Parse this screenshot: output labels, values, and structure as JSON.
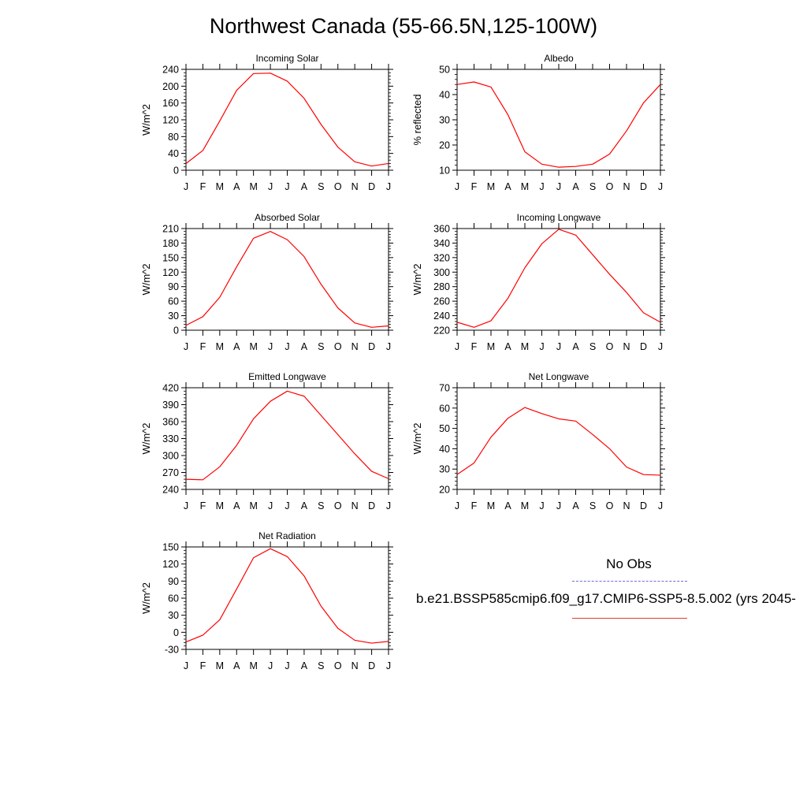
{
  "title": "Northwest Canada (55-66.5N,125-100W)",
  "colors": {
    "series": "#ff0000",
    "obs": "#6b6bd6",
    "axis": "#000000"
  },
  "legend": {
    "obs_label": "No Obs",
    "model_label": "b.e21.BSSP585cmip6.f09_g17.CMIP6-SSP5-8.5.002 (yrs 2045-"
  },
  "chart_data": [
    {
      "type": "line",
      "title": "Incoming Solar",
      "ylabel": "W/m^2",
      "categories": [
        "J",
        "F",
        "M",
        "A",
        "M",
        "J",
        "J",
        "A",
        "S",
        "O",
        "N",
        "D",
        "J"
      ],
      "ylim": [
        0,
        240
      ],
      "yticks": [
        0,
        40,
        80,
        120,
        160,
        200,
        240
      ],
      "series": [
        {
          "values": [
            16,
            47,
            117,
            190,
            230,
            231,
            212,
            171,
            109,
            55,
            20,
            10,
            16
          ]
        }
      ]
    },
    {
      "type": "line",
      "title": "Albedo",
      "ylabel": "% reflected",
      "categories": [
        "J",
        "F",
        "M",
        "A",
        "M",
        "J",
        "J",
        "A",
        "S",
        "O",
        "N",
        "D",
        "J"
      ],
      "ylim": [
        10,
        50
      ],
      "yticks": [
        10,
        20,
        30,
        40,
        50
      ],
      "series": [
        {
          "values": [
            44,
            45,
            43,
            32,
            17.3,
            12.4,
            11.2,
            11.5,
            12.4,
            16.4,
            25.6,
            36.7,
            44
          ]
        }
      ]
    },
    {
      "type": "line",
      "title": "Absorbed Solar",
      "ylabel": "W/m^2",
      "categories": [
        "J",
        "F",
        "M",
        "A",
        "M",
        "J",
        "J",
        "A",
        "S",
        "O",
        "N",
        "D",
        "J"
      ],
      "ylim": [
        0,
        210
      ],
      "yticks": [
        0,
        30,
        60,
        90,
        120,
        150,
        180,
        210
      ],
      "series": [
        {
          "values": [
            10,
            28,
            68,
            131,
            190,
            204,
            187,
            152,
            95,
            46,
            15,
            6,
            9
          ]
        }
      ]
    },
    {
      "type": "line",
      "title": "Incoming Longwave",
      "ylabel": "W/m^2",
      "categories": [
        "J",
        "F",
        "M",
        "A",
        "M",
        "J",
        "J",
        "A",
        "S",
        "O",
        "N",
        "D",
        "J"
      ],
      "ylim": [
        220,
        360
      ],
      "yticks": [
        220,
        240,
        260,
        280,
        300,
        320,
        340,
        360
      ],
      "series": [
        {
          "values": [
            231,
            224,
            233,
            264,
            306,
            339,
            359,
            351,
            324,
            297,
            272,
            244,
            231
          ]
        }
      ]
    },
    {
      "type": "line",
      "title": "Emitted Longwave",
      "ylabel": "W/m^2",
      "categories": [
        "J",
        "F",
        "M",
        "A",
        "M",
        "J",
        "J",
        "A",
        "S",
        "O",
        "N",
        "D",
        "J"
      ],
      "ylim": [
        240,
        420
      ],
      "yticks": [
        240,
        270,
        300,
        330,
        360,
        390,
        420
      ],
      "series": [
        {
          "values": [
            258,
            257,
            280,
            318,
            365,
            396,
            414,
            405,
            371,
            337,
            303,
            272,
            259
          ]
        }
      ]
    },
    {
      "type": "line",
      "title": "Net Longwave",
      "ylabel": "W/m^2",
      "categories": [
        "J",
        "F",
        "M",
        "A",
        "M",
        "J",
        "J",
        "A",
        "S",
        "O",
        "N",
        "D",
        "J"
      ],
      "ylim": [
        20,
        70
      ],
      "yticks": [
        20,
        30,
        40,
        50,
        60,
        70
      ],
      "series": [
        {
          "values": [
            27.3,
            33,
            45.7,
            55,
            60.3,
            57.3,
            54.7,
            53.6,
            47,
            40,
            31,
            27.3,
            27
          ]
        }
      ]
    },
    {
      "type": "line",
      "title": "Net Radiation",
      "ylabel": "W/m^2",
      "categories": [
        "J",
        "F",
        "M",
        "A",
        "M",
        "J",
        "J",
        "A",
        "S",
        "O",
        "N",
        "D",
        "J"
      ],
      "ylim": [
        -30,
        150
      ],
      "yticks": [
        -30,
        0,
        30,
        60,
        90,
        120,
        150
      ],
      "series": [
        {
          "values": [
            -17,
            -5,
            22,
            76,
            131,
            147,
            133,
            99,
            46,
            7,
            -14,
            -19,
            -16
          ]
        }
      ]
    }
  ]
}
